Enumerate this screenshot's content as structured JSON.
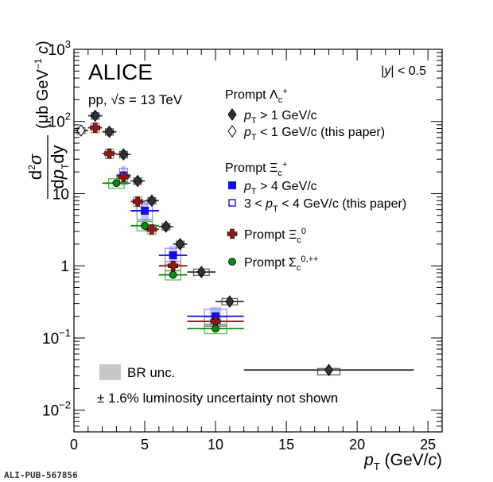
{
  "chart_data": {
    "type": "scatter",
    "x_scale": "linear",
    "y_scale": "log",
    "xlim": [
      0,
      26
    ],
    "ylim": [
      0.005,
      1000
    ],
    "xlabel": "p_T (GeV/c)",
    "ylabel": "d²σ / dp_T dy (μb GeV⁻¹ c)",
    "x_ticks": [
      0,
      5,
      10,
      15,
      20,
      25
    ],
    "y_ticks": [
      {
        "v": 0.01,
        "base": "10",
        "exp": "−2"
      },
      {
        "v": 0.1,
        "base": "10",
        "exp": "−1"
      },
      {
        "v": 1,
        "base": "1",
        "exp": ""
      },
      {
        "v": 10,
        "base": "10",
        "exp": ""
      },
      {
        "v": 100,
        "base": "10",
        "exp": "2"
      },
      {
        "v": 1000,
        "base": "10",
        "exp": "3"
      }
    ],
    "series": [
      {
        "name": "Prompt Λc+ , pT > 1 GeV/c",
        "marker": "diamond-filled",
        "color": "#333333",
        "sys_color": "#555555",
        "points": [
          {
            "x": 1.5,
            "y": 120,
            "ex": 0.5,
            "err": 0.1
          },
          {
            "x": 2.5,
            "y": 72,
            "ex": 0.5,
            "err": 0.1
          },
          {
            "x": 3.5,
            "y": 35,
            "ex": 0.5,
            "err": 0.1
          },
          {
            "x": 4.5,
            "y": 15,
            "ex": 0.5,
            "err": 0.1
          },
          {
            "x": 5.5,
            "y": 8,
            "ex": 0.5,
            "err": 0.1
          },
          {
            "x": 6.5,
            "y": 3.5,
            "ex": 0.5,
            "err": 0.1
          },
          {
            "x": 7.5,
            "y": 2.0,
            "ex": 0.5,
            "err": 0.1
          },
          {
            "x": 9.0,
            "y": 0.82,
            "ex": 1.0,
            "err": 0.1
          },
          {
            "x": 11.0,
            "y": 0.32,
            "ex": 1.0,
            "err": 0.1
          },
          {
            "x": 18.0,
            "y": 0.036,
            "ex": 6.0,
            "err": 0.05
          }
        ]
      },
      {
        "name": "Prompt Λc+ , pT < 1 GeV/c (this paper)",
        "marker": "diamond-open",
        "color": "#333333",
        "sys_color": "#777777",
        "points": [
          {
            "x": 0.5,
            "y": 75,
            "ex": 0.5,
            "err": 0.1
          }
        ]
      },
      {
        "name": "Prompt Ξc+ , pT > 4 GeV/c",
        "marker": "square-filled",
        "color": "#1010e6",
        "sys_color": "#8a8af0",
        "points": [
          {
            "x": 5.0,
            "y": 5.8,
            "ex": 1.0,
            "err": 0.25
          },
          {
            "x": 7.0,
            "y": 1.4,
            "ex": 1.0,
            "err": 0.25
          },
          {
            "x": 10.0,
            "y": 0.2,
            "ex": 2.0,
            "err": 0.25
          }
        ]
      },
      {
        "name": "Prompt Ξc+ , 3 < pT < 4 GeV/c (this paper)",
        "marker": "square-open",
        "color": "#1010e6",
        "sys_color": "#8a8af0",
        "points": [
          {
            "x": 3.5,
            "y": 18,
            "ex": 0.5,
            "err": 0.25
          }
        ]
      },
      {
        "name": "Prompt Ξc0",
        "marker": "cross-filled",
        "color": "#8b1a1a",
        "sys_color": "#c08080",
        "points": [
          {
            "x": 1.5,
            "y": 82,
            "ex": 0.5,
            "err": 0.15
          },
          {
            "x": 2.5,
            "y": 36,
            "ex": 0.5,
            "err": 0.15
          },
          {
            "x": 3.5,
            "y": 17,
            "ex": 0.5,
            "err": 0.15
          },
          {
            "x": 4.5,
            "y": 7.8,
            "ex": 0.5,
            "err": 0.15
          },
          {
            "x": 5.5,
            "y": 3.2,
            "ex": 0.5,
            "err": 0.15
          },
          {
            "x": 7.0,
            "y": 1.0,
            "ex": 1.0,
            "err": 0.15
          },
          {
            "x": 10.0,
            "y": 0.17,
            "ex": 2.0,
            "err": 0.15
          }
        ]
      },
      {
        "name": "Prompt Σc0,++",
        "marker": "circle-filled",
        "color": "#0a8a0a",
        "sys_color": "#44bb44",
        "points": [
          {
            "x": 3.0,
            "y": 14,
            "ex": 1.0,
            "err": 0.15
          },
          {
            "x": 5.0,
            "y": 3.6,
            "ex": 1.0,
            "err": 0.15
          },
          {
            "x": 7.0,
            "y": 0.75,
            "ex": 1.0,
            "err": 0.15
          },
          {
            "x": 10.0,
            "y": 0.135,
            "ex": 2.0,
            "err": 0.15
          }
        ]
      }
    ],
    "annotations": {
      "experiment": "ALICE",
      "system_prefix": "pp,",
      "sqrt_s_label": "s",
      "energy_suffix": "= 13 TeV",
      "rapidity": "|y| < 0.5",
      "lc_group_title": "Prompt Λ",
      "xic_group_title": "Prompt Ξ",
      "legend_lc_gt1": "p",
      "legend_lc_gt1_suffix": "> 1 GeV/c",
      "legend_lc_lt1_suffix": "< 1 GeV/c (this paper)",
      "legend_xic_gt4_suffix": "> 4 GeV/c",
      "legend_xic_range_prefix": "3 <",
      "legend_xic_range_suffix": "< 4 GeV/c (this paper)",
      "legend_xic0": "Prompt Ξ",
      "legend_sigmac": "Prompt Σ",
      "br_unc": "BR unc.",
      "lumi_note": "± 1.6% luminosity uncertainty not shown",
      "pub_id": "ALI-PUB-567856"
    }
  }
}
